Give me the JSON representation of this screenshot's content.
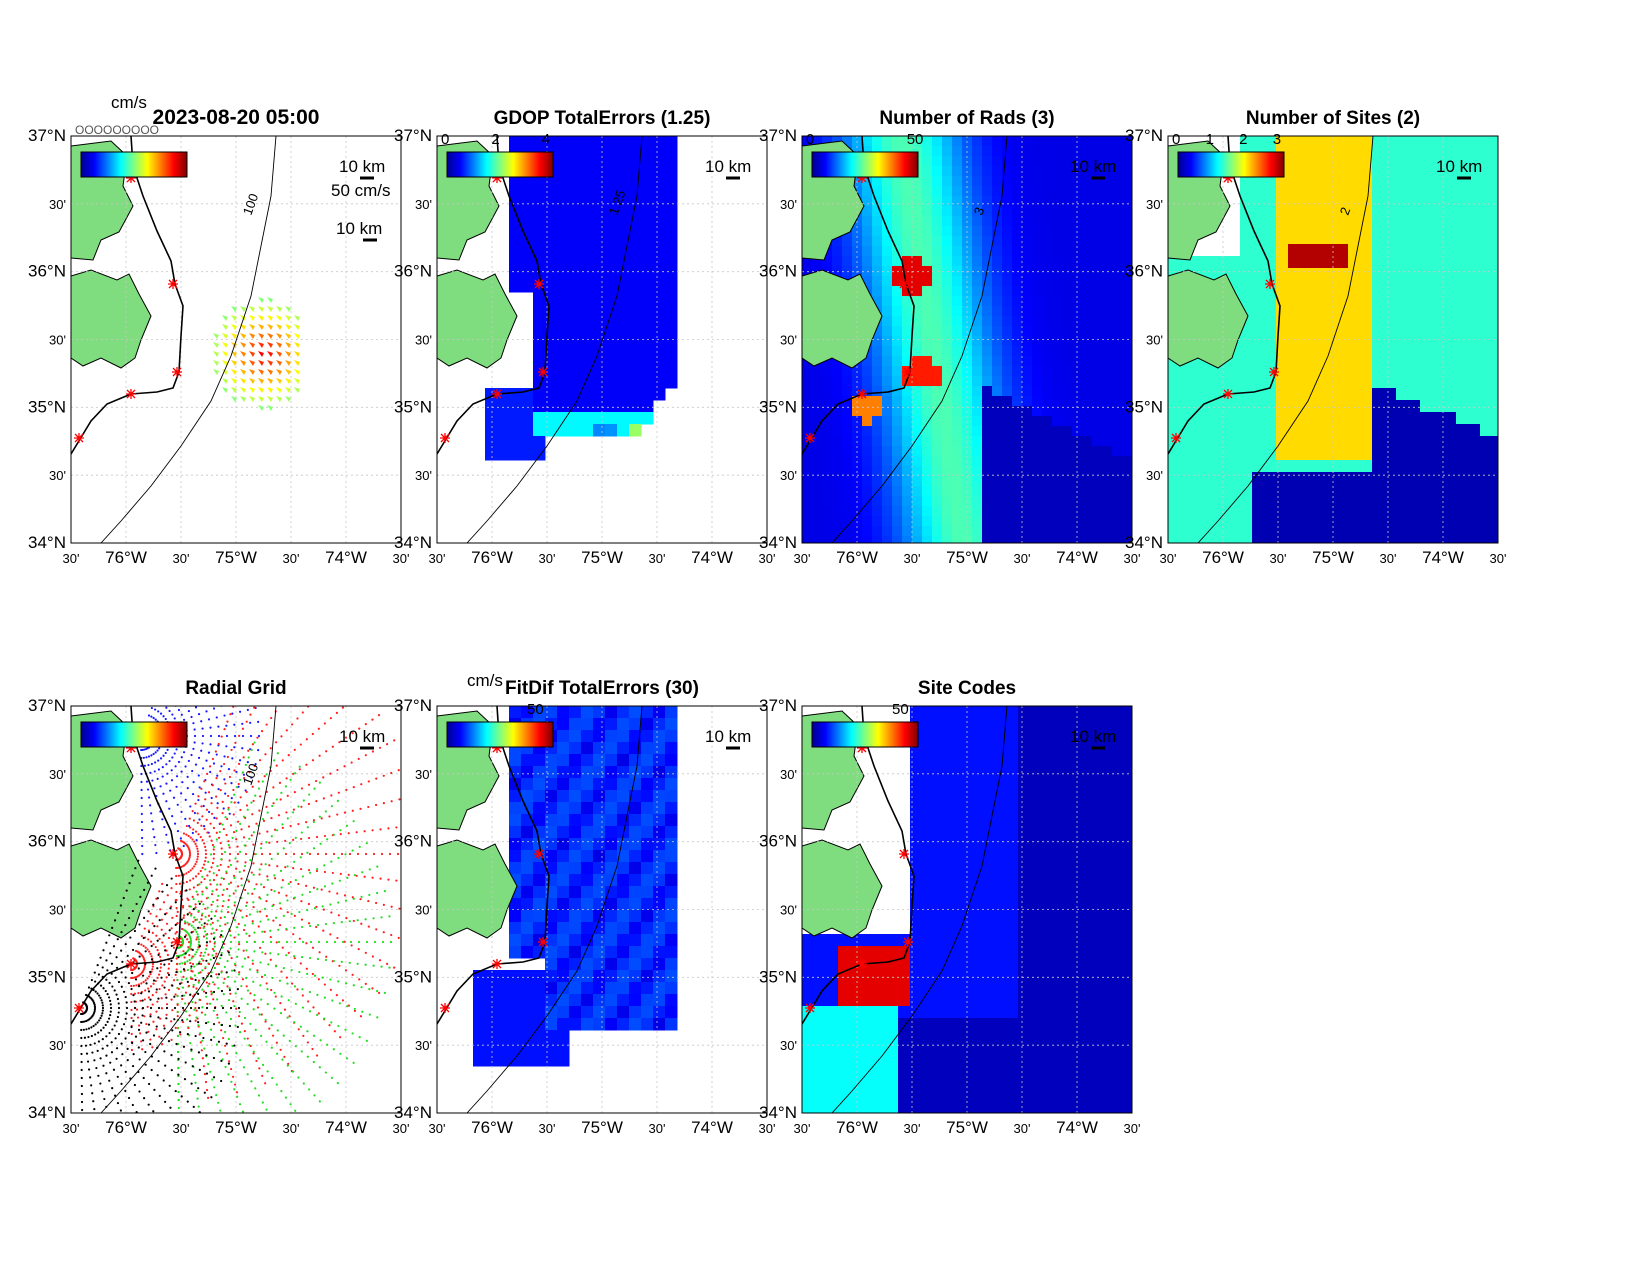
{
  "figure": {
    "timestamp": "2023-08-20 05:00",
    "units_header": "cm/s",
    "overlap_label": "OOOOOOOOO",
    "speed_scale": "50 cm/s",
    "distance_scale": "10 km"
  },
  "axes": {
    "lat_labels": [
      "37°N",
      "30'",
      "36°N",
      "30'",
      "35°N",
      "30'",
      "34°N"
    ],
    "lon_labels": [
      "30'",
      "76°W",
      "30'",
      "75°W",
      "30'",
      "74°W",
      "30'"
    ],
    "lat_range": [
      34,
      37
    ],
    "lon_range": [
      -76.5,
      -73.5
    ]
  },
  "panels": [
    {
      "id": "currents",
      "title": "2023-08-20 05:00",
      "colorbar_ticks": [],
      "colorbar_unit": "cm/s",
      "contour_label": "100"
    },
    {
      "id": "gdop",
      "title": "GDOP TotalErrors (1.25)",
      "colorbar_ticks": [
        "0",
        "2",
        "4"
      ],
      "contour_label": "1.25"
    },
    {
      "id": "num-rads",
      "title": "Number of Rads (3)",
      "colorbar_ticks": [
        "0",
        "50"
      ],
      "contour_label": "3"
    },
    {
      "id": "num-sites",
      "title": "Number of Sites (2)",
      "colorbar_ticks": [
        "0",
        "1",
        "2",
        "3"
      ],
      "contour_label": "2"
    },
    {
      "id": "radial-grid",
      "title": "Radial Grid",
      "colorbar_ticks": [],
      "contour_label": "100"
    },
    {
      "id": "fitdif",
      "title": "FitDif TotalErrors (30)",
      "colorbar_ticks": [
        "50"
      ],
      "colorbar_unit": "cm/s"
    },
    {
      "id": "site-codes",
      "title": "Site Codes",
      "colorbar_ticks": [
        "50"
      ]
    }
  ],
  "colors": {
    "land": "#7fdc7f",
    "coast": "#000000",
    "site_marker": "#ff0000",
    "grid": "#c8c8c8"
  }
}
